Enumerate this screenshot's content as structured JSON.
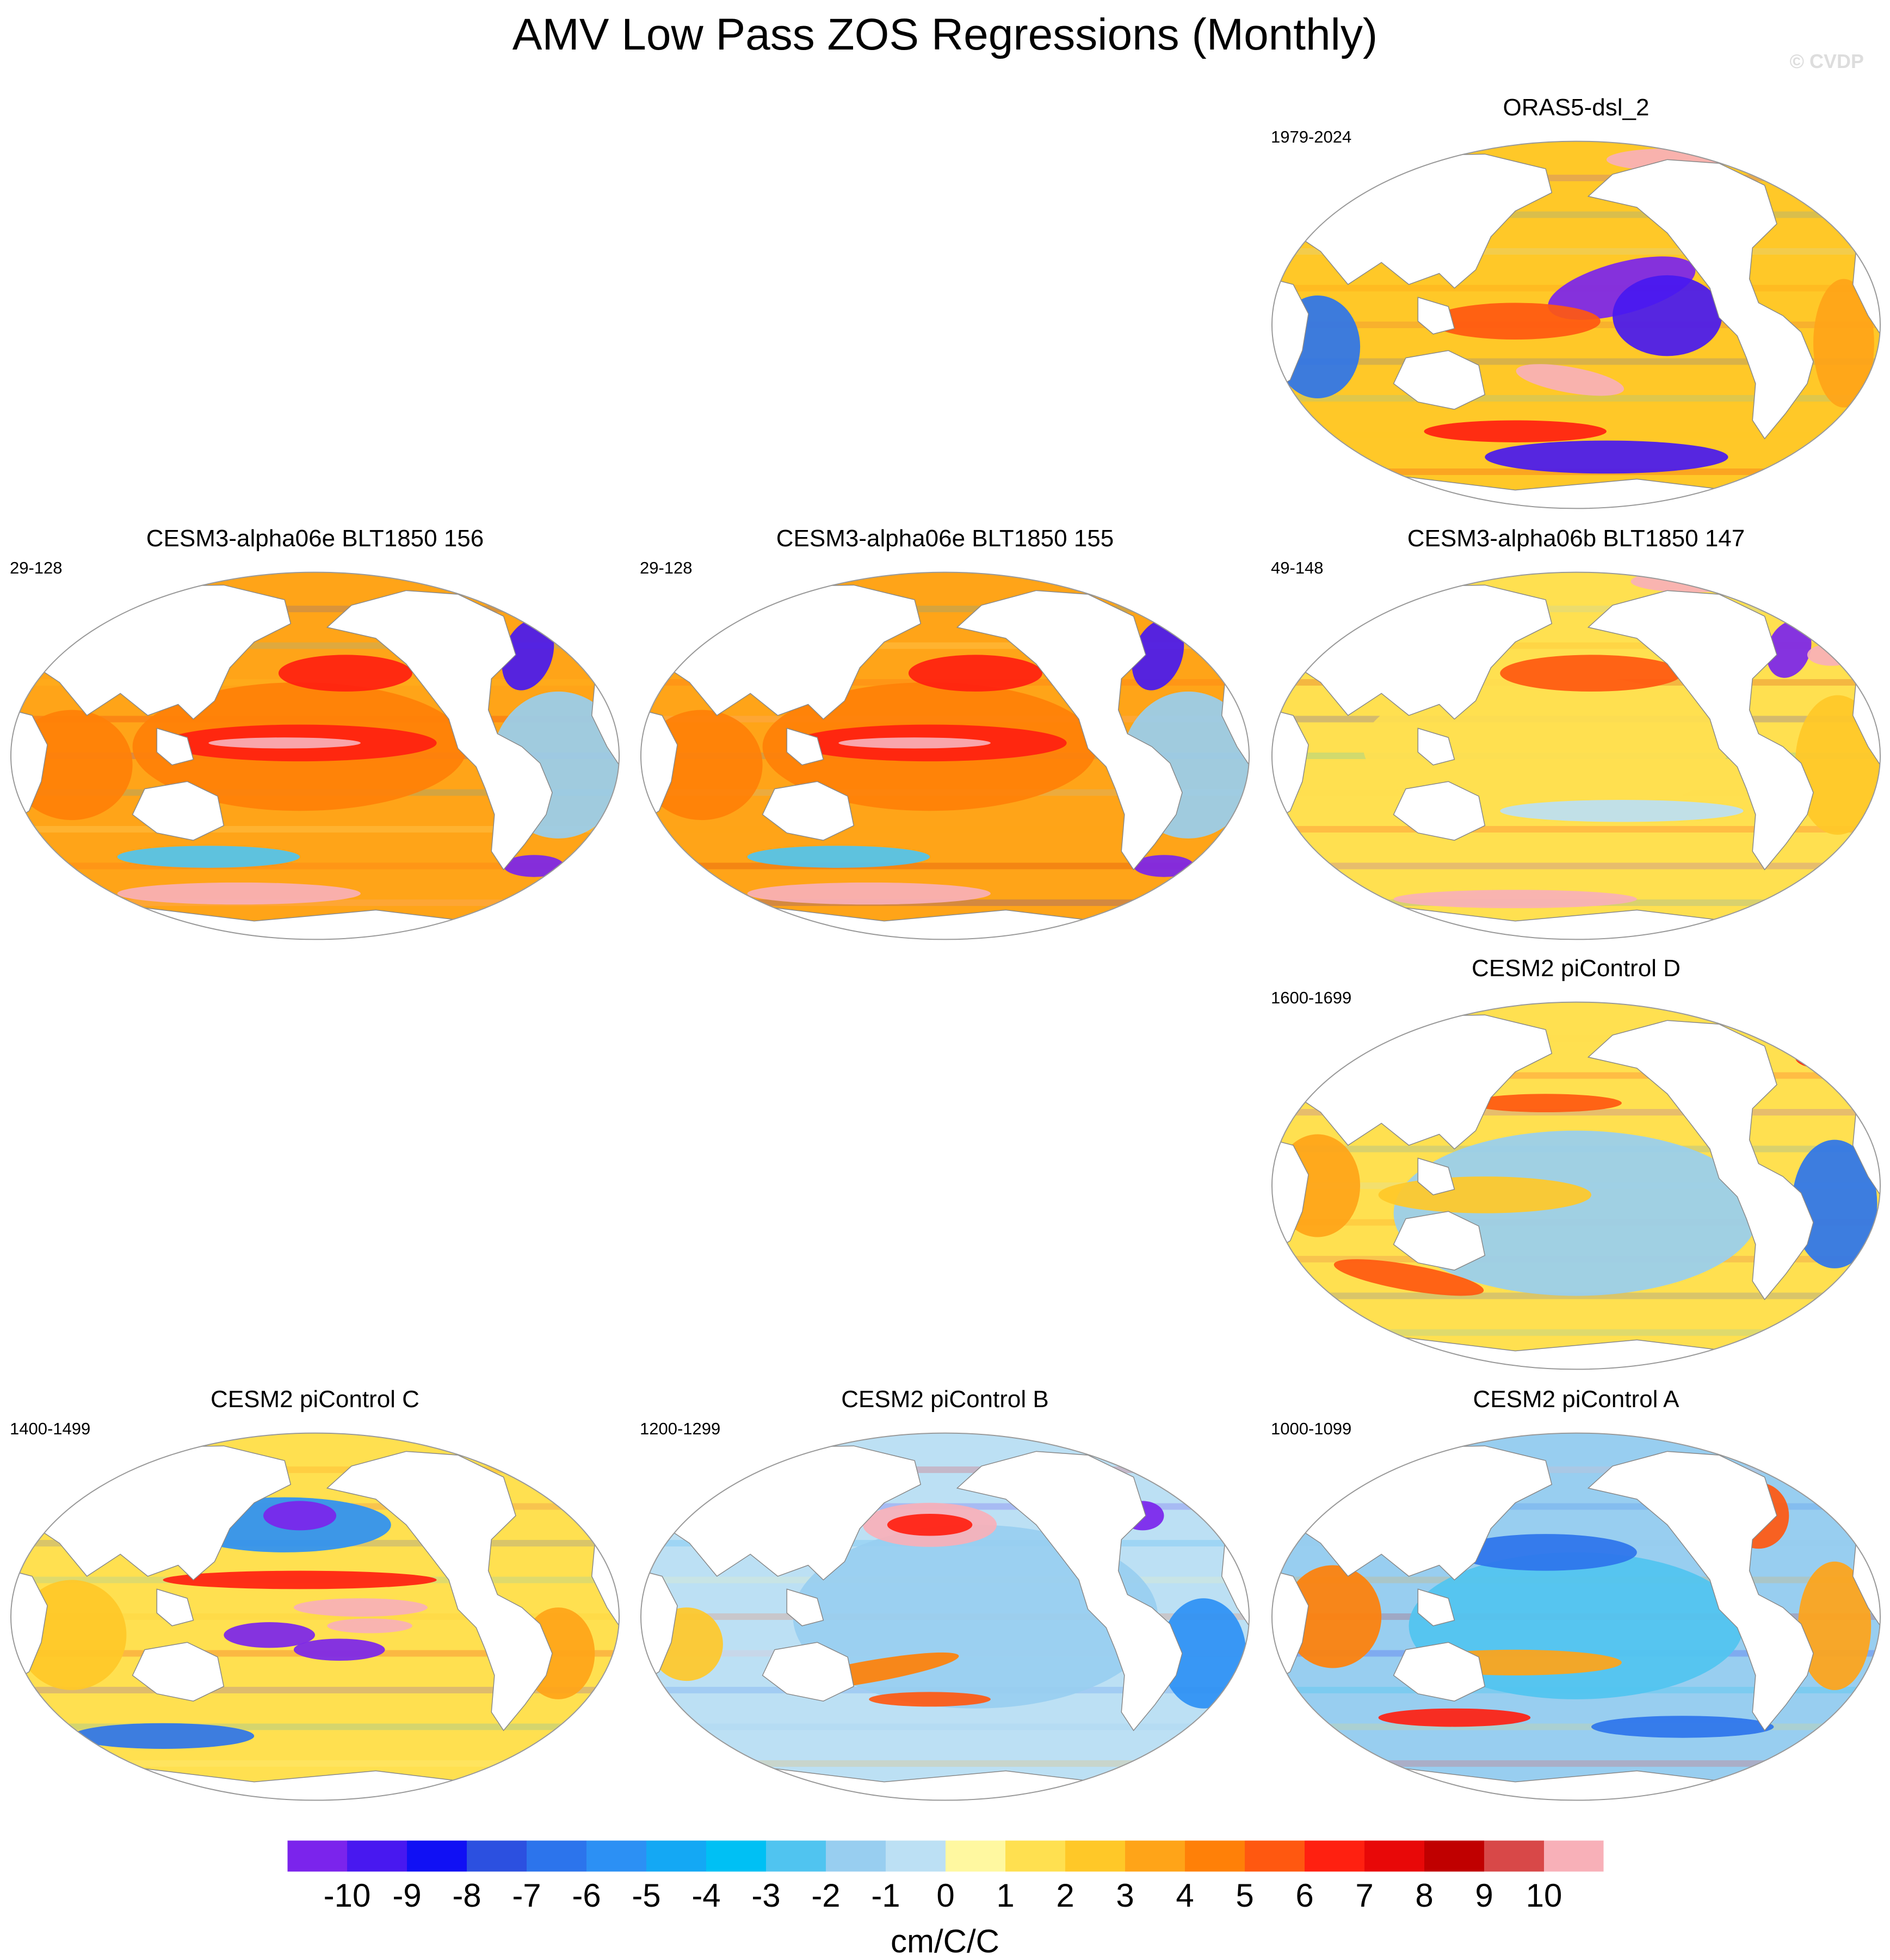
{
  "title": "AMV Low Pass ZOS Regressions (Monthly)",
  "watermark": "© CVDP",
  "panels": [
    {
      "id": "oras5",
      "title": "ORAS5-dsl_2",
      "years": "1979-2024",
      "pattern": "oras5"
    },
    {
      "id": "cesm3-156",
      "title": "CESM3-alpha06e BLT1850 156",
      "years": "29-128",
      "pattern": "cesm3"
    },
    {
      "id": "cesm3-155",
      "title": "CESM3-alpha06e BLT1850 155",
      "years": "29-128",
      "pattern": "cesm3"
    },
    {
      "id": "cesm3-147",
      "title": "CESM3-alpha06b BLT1850 147",
      "years": "49-148",
      "pattern": "cesm3b"
    },
    {
      "id": "cesm2-d",
      "title": "CESM2 piControl D",
      "years": "1600-1699",
      "pattern": "cesm2d"
    },
    {
      "id": "cesm2-c",
      "title": "CESM2 piControl C",
      "years": "1400-1499",
      "pattern": "cesm2c"
    },
    {
      "id": "cesm2-b",
      "title": "CESM2 piControl B",
      "years": "1200-1299",
      "pattern": "cesm2b"
    },
    {
      "id": "cesm2-a",
      "title": "CESM2 piControl A",
      "years": "1000-1099",
      "pattern": "cesm2a"
    }
  ],
  "colorbar": {
    "labels": [
      "-10",
      "-9",
      "-8",
      "-7",
      "-6",
      "-5",
      "-4",
      "-3",
      "-2",
      "-1",
      "0",
      "1",
      "2",
      "3",
      "4",
      "5",
      "6",
      "7",
      "8",
      "9",
      "10"
    ],
    "colors": [
      "#7b24ec",
      "#4818f0",
      "#1010f4",
      "#2c50e0",
      "#2c74ec",
      "#2c90f4",
      "#14a8f4",
      "#00c0f4",
      "#50c4f0",
      "#98cef0",
      "#bce0f4",
      "#fff8a0",
      "#ffe050",
      "#ffc828",
      "#ffa418",
      "#ff8008",
      "#ff5810",
      "#ff2010",
      "#e80808",
      "#c00000",
      "#d84848",
      "#f8b0b8"
    ],
    "units": "cm/C/C"
  }
}
